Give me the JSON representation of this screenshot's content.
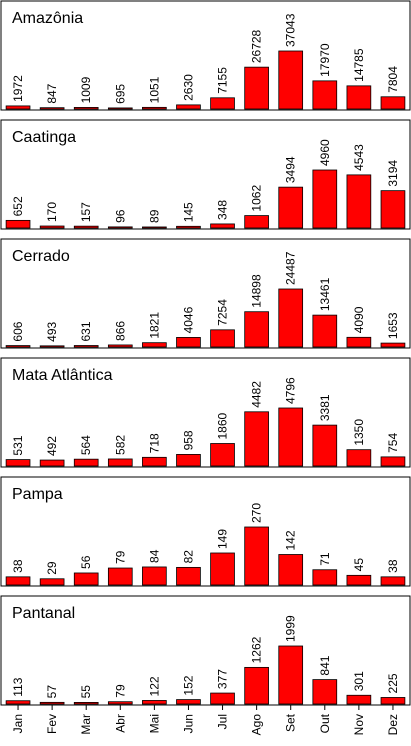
{
  "chart_data": {
    "type": "bar",
    "categories": [
      "Jan",
      "Fev",
      "Mar",
      "Abr",
      "Mai",
      "Jun",
      "Jul",
      "Ago",
      "Set",
      "Out",
      "Nov",
      "Dez"
    ],
    "bar_color": "#ff0000",
    "panels": [
      {
        "title": "Amazônia",
        "values": [
          1972,
          847,
          1009,
          695,
          1051,
          2630,
          7155,
          26728,
          37043,
          17970,
          14785,
          7804
        ]
      },
      {
        "title": "Caatinga",
        "values": [
          652,
          170,
          157,
          96,
          89,
          145,
          348,
          1062,
          3494,
          4960,
          4543,
          3194
        ]
      },
      {
        "title": "Cerrado",
        "values": [
          606,
          493,
          631,
          866,
          1821,
          4046,
          7254,
          14898,
          24487,
          13461,
          4090,
          1653
        ]
      },
      {
        "title": "Mata Atlântica",
        "values": [
          531,
          492,
          564,
          582,
          718,
          958,
          1860,
          4482,
          4796,
          3381,
          1350,
          754
        ]
      },
      {
        "title": "Pampa",
        "values": [
          38,
          29,
          56,
          79,
          84,
          82,
          149,
          270,
          142,
          71,
          45,
          38
        ]
      },
      {
        "title": "Pantanal",
        "values": [
          113,
          57,
          55,
          79,
          122,
          152,
          377,
          1262,
          1999,
          841,
          301,
          225
        ]
      }
    ]
  }
}
